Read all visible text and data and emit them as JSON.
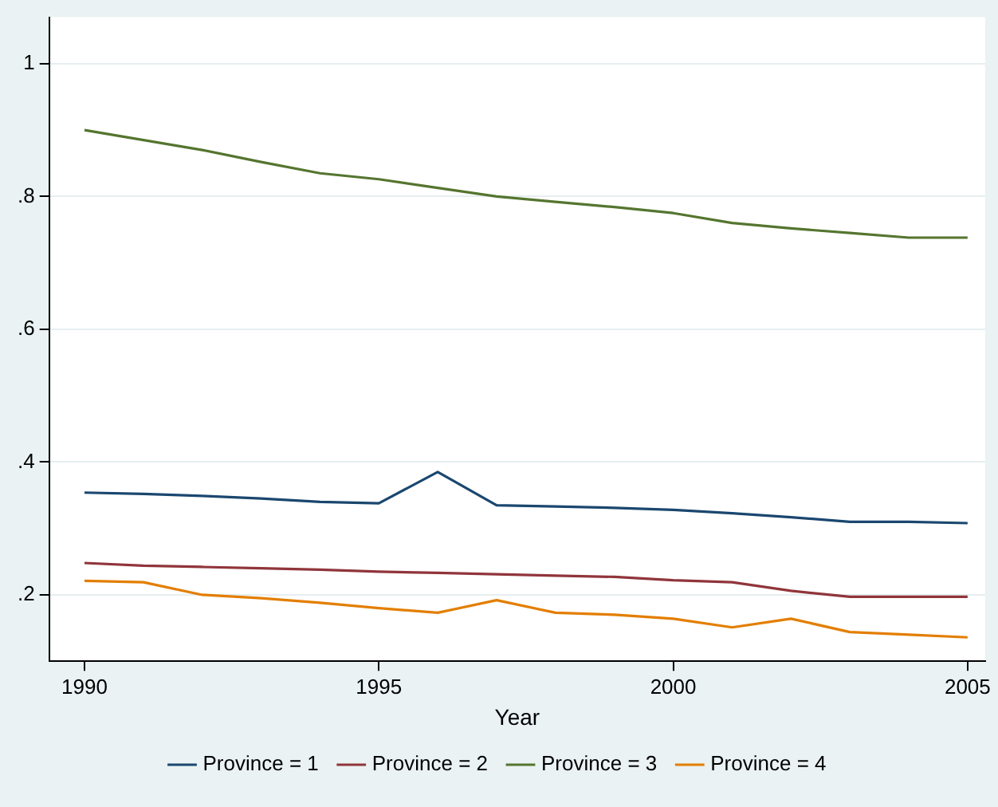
{
  "chart_data": {
    "type": "line",
    "xlabel": "Year",
    "x": [
      1990,
      1991,
      1992,
      1993,
      1994,
      1995,
      1996,
      1997,
      1998,
      1999,
      2000,
      2001,
      2002,
      2003,
      2004,
      2005
    ],
    "series": [
      {
        "name": "Province = 1",
        "color": "#1a476f",
        "values": [
          0.354,
          0.352,
          0.349,
          0.345,
          0.34,
          0.338,
          0.385,
          0.335,
          0.333,
          0.331,
          0.328,
          0.323,
          0.317,
          0.31,
          0.31,
          0.308
        ]
      },
      {
        "name": "Province = 2",
        "color": "#90353b",
        "values": [
          0.248,
          0.244,
          0.242,
          0.24,
          0.238,
          0.235,
          0.233,
          0.231,
          0.229,
          0.227,
          0.222,
          0.219,
          0.206,
          0.197,
          0.197,
          0.197
        ]
      },
      {
        "name": "Province = 3",
        "color": "#55752f",
        "values": [
          0.9,
          0.885,
          0.87,
          0.852,
          0.835,
          0.826,
          0.813,
          0.8,
          0.792,
          0.784,
          0.775,
          0.76,
          0.752,
          0.745,
          0.738,
          0.738
        ]
      },
      {
        "name": "Province = 4",
        "color": "#e37e00",
        "values": [
          0.221,
          0.219,
          0.2,
          0.195,
          0.188,
          0.18,
          0.173,
          0.192,
          0.173,
          0.17,
          0.164,
          0.151,
          0.164,
          0.144,
          0.14,
          0.136
        ]
      }
    ],
    "xlim": [
      1989.4,
      2005.3
    ],
    "xticks": [
      1990,
      1995,
      2000,
      2005
    ],
    "ylim": [
      0.1,
      1.07
    ],
    "yticks": [
      {
        "value": 0.2,
        "label": ".2"
      },
      {
        "value": 0.4,
        "label": ".4"
      },
      {
        "value": 0.6,
        "label": ".6"
      },
      {
        "value": 0.8,
        "label": ".8"
      },
      {
        "value": 1,
        "label": "1"
      }
    ],
    "grid": "y",
    "legend": "bottom",
    "marker": "none",
    "line_style": "solid"
  }
}
